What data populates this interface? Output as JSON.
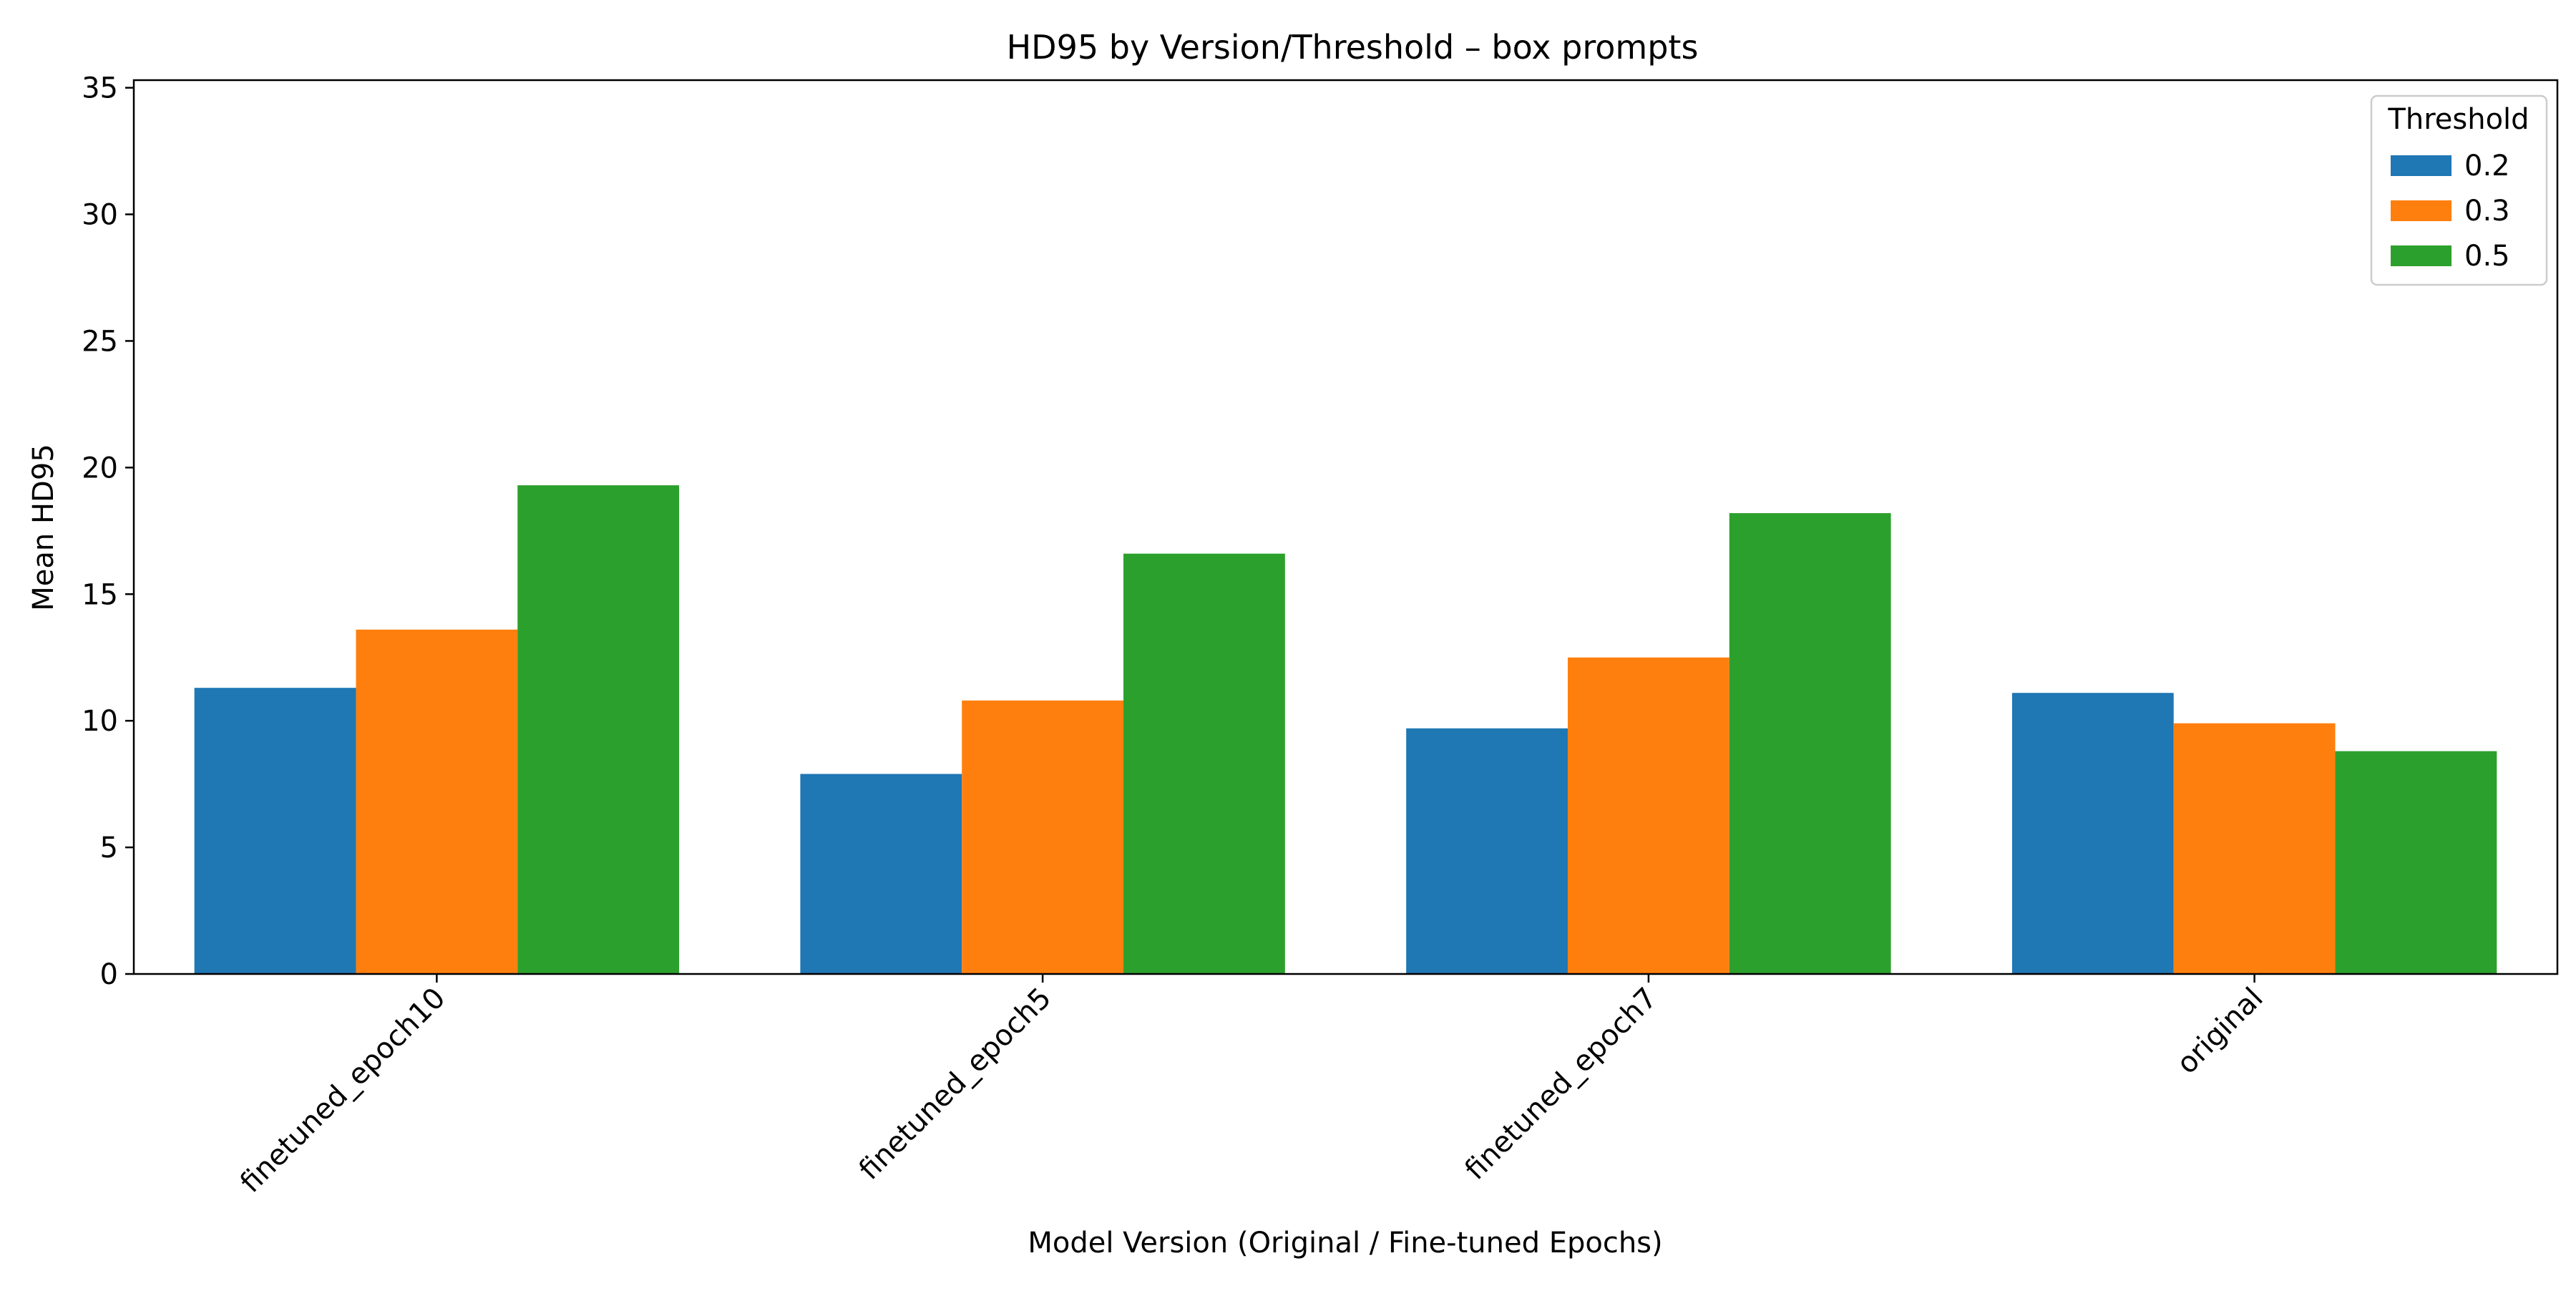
{
  "chart_data": {
    "type": "bar",
    "title": "HD95 by Version/Threshold – box prompts",
    "xlabel": "Model Version (Original / Fine-tuned Epochs)",
    "ylabel": "Mean HD95",
    "categories": [
      "finetuned_epoch10",
      "finetuned_epoch5",
      "finetuned_epoch7",
      "original"
    ],
    "series": [
      {
        "name": "0.2",
        "color": "#1f77b4",
        "values": [
          11.3,
          7.9,
          9.7,
          11.1
        ]
      },
      {
        "name": "0.3",
        "color": "#ff7f0e",
        "values": [
          13.6,
          10.8,
          12.5,
          9.9
        ]
      },
      {
        "name": "0.5",
        "color": "#2ca02c",
        "values": [
          19.3,
          16.6,
          18.2,
          8.8
        ]
      }
    ],
    "ylim": [
      0,
      35.3
    ],
    "yticks": [
      0,
      5,
      10,
      15,
      20,
      25,
      30,
      35
    ],
    "xtick_rotation": 45,
    "grid": false,
    "legend": {
      "title": "Threshold",
      "position": "top-right"
    }
  }
}
